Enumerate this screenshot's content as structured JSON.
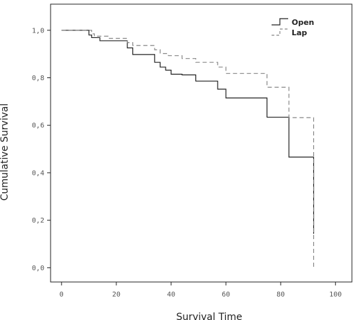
{
  "chart_data": {
    "type": "line",
    "subtype": "kaplan-meier-step",
    "xlabel": "Survival Time",
    "ylabel": "Cumulative Survival",
    "xlim": [
      -4,
      106
    ],
    "ylim": [
      -0.06,
      1.11
    ],
    "x_ticks": [
      0,
      20,
      40,
      60,
      80,
      100
    ],
    "x_tick_labels": [
      "0",
      "20",
      "40",
      "60",
      "80",
      "100"
    ],
    "y_ticks": [
      0.0,
      0.2,
      0.4,
      0.6,
      0.8,
      1.0
    ],
    "y_tick_labels": [
      "0,0",
      "0,2",
      "0,4",
      "0,6",
      "0,8",
      "1,0"
    ],
    "grid": false,
    "legend_position": "top-right",
    "series": [
      {
        "name": "Open",
        "color": "#222222",
        "dash": "solid",
        "steps": [
          [
            0,
            1.0
          ],
          [
            10,
            0.98
          ],
          [
            11,
            0.969
          ],
          [
            14,
            0.956
          ],
          [
            24,
            0.926
          ],
          [
            26,
            0.898
          ],
          [
            34,
            0.865
          ],
          [
            36,
            0.845
          ],
          [
            38,
            0.832
          ],
          [
            40,
            0.815
          ],
          [
            44,
            0.812
          ],
          [
            49,
            0.786
          ],
          [
            57,
            0.752
          ],
          [
            60,
            0.715
          ],
          [
            75,
            0.634
          ],
          [
            83,
            0.466
          ],
          [
            92,
            0.143
          ]
        ]
      },
      {
        "name": "Lap",
        "color": "#888888",
        "dash": "dashed",
        "steps": [
          [
            0,
            1.0
          ],
          [
            11,
            0.985
          ],
          [
            12,
            0.975
          ],
          [
            17,
            0.966
          ],
          [
            24,
            0.948
          ],
          [
            26,
            0.936
          ],
          [
            34,
            0.918
          ],
          [
            36,
            0.902
          ],
          [
            39,
            0.893
          ],
          [
            44,
            0.881
          ],
          [
            49,
            0.865
          ],
          [
            57,
            0.845
          ],
          [
            60,
            0.818
          ],
          [
            75,
            0.76
          ],
          [
            83,
            0.632
          ],
          [
            92,
            0.0
          ]
        ]
      }
    ]
  },
  "legend": {
    "items": [
      {
        "label": "Open",
        "color": "#222222",
        "dash": "solid"
      },
      {
        "label": "Lap",
        "color": "#888888",
        "dash": "dashed"
      }
    ]
  }
}
